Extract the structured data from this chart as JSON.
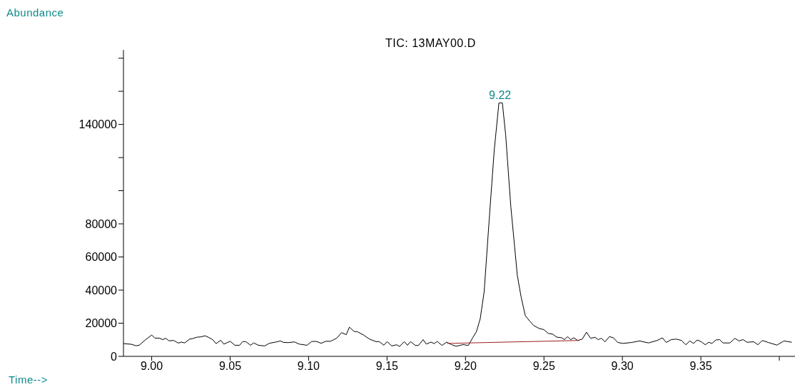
{
  "chart_data": {
    "type": "line",
    "title": "TIC: 13MAY00.D",
    "xlabel": "Time-->",
    "ylabel": "Abundance",
    "annotations": [
      {
        "text": "9.22",
        "x": 9.222,
        "y": 153000
      }
    ],
    "xlim": [
      8.982,
      9.41
    ],
    "xticks": [
      {
        "value": 9.0,
        "label": "9.00"
      },
      {
        "value": 9.05,
        "label": "9.05"
      },
      {
        "value": 9.1,
        "label": "9.10"
      },
      9.15,
      {
        "value": 9.2,
        "label": "9.20"
      },
      9.25,
      {
        "value": 9.3,
        "label": "9.30"
      },
      9.35,
      {
        "value": 9.4,
        "label": null
      }
    ],
    "ylim": [
      0,
      185000
    ],
    "yticks": [
      0,
      20000,
      40000,
      60000,
      80000,
      {
        "value": 100000,
        "label": null
      },
      {
        "value": 120000,
        "label": null
      },
      140000,
      {
        "value": 160000,
        "label": null
      },
      {
        "value": 180000,
        "label": null
      }
    ],
    "series": [
      {
        "color": "#000000",
        "x": [
          8.982,
          8.987,
          8.99,
          8.992,
          8.996,
          9.0,
          9.002,
          9.005,
          9.007,
          9.009,
          9.011,
          9.014,
          9.017,
          9.019,
          9.021,
          9.024,
          9.026,
          9.029,
          9.031,
          9.034,
          9.036,
          9.039,
          9.041,
          9.044,
          9.046,
          9.05,
          9.053,
          9.056,
          9.058,
          9.06,
          9.063,
          9.065,
          9.068,
          9.072,
          9.075,
          9.079,
          9.082,
          9.084,
          9.087,
          9.091,
          9.094,
          9.099,
          9.102,
          9.105,
          9.108,
          9.111,
          9.114,
          9.118,
          9.121,
          9.124,
          9.126,
          9.129,
          9.131,
          9.135,
          9.139,
          9.143,
          9.145,
          9.148,
          9.15,
          9.153,
          9.156,
          9.158,
          9.161,
          9.163,
          9.165,
          9.168,
          9.17,
          9.173,
          9.175,
          9.178,
          9.18,
          9.182,
          9.185,
          9.188,
          9.191,
          9.194,
          9.1985,
          9.2018,
          9.2045,
          9.207,
          9.2094,
          9.2119,
          9.2151,
          9.2183,
          9.2213,
          9.2235,
          9.2256,
          9.2289,
          9.233,
          9.2354,
          9.2381,
          9.241,
          9.2435,
          9.2468,
          9.25,
          9.2528,
          9.2554,
          9.2581,
          9.2614,
          9.263,
          9.2651,
          9.267,
          9.269,
          9.2716,
          9.2744,
          9.2771,
          9.2797,
          9.2825,
          9.2846,
          9.2865,
          9.289,
          9.2917,
          9.2943,
          9.297,
          9.3003,
          9.306,
          9.3109,
          9.3166,
          9.3222,
          9.3255,
          9.3279,
          9.3312,
          9.3344,
          9.3377,
          9.3404,
          9.343,
          9.3453,
          9.3477,
          9.3503,
          9.3528,
          9.355,
          9.3571,
          9.3596,
          9.362,
          9.3641,
          9.3685,
          9.3717,
          9.3742,
          9.3769,
          9.3795,
          9.3836,
          9.3864,
          9.3891,
          9.3929,
          9.3985,
          9.403,
          9.408
        ],
        "values": [
          7700,
          7300,
          6400,
          6700,
          10000,
          12900,
          11000,
          11000,
          10100,
          10900,
          9400,
          9600,
          8000,
          8600,
          8100,
          10300,
          10700,
          11600,
          11700,
          12400,
          11600,
          10000,
          7700,
          9700,
          7400,
          9100,
          6700,
          6700,
          8900,
          8900,
          6700,
          8100,
          6700,
          6300,
          7900,
          8600,
          9300,
          8400,
          8300,
          8700,
          7400,
          6700,
          9000,
          9000,
          7900,
          9100,
          9100,
          11000,
          14300,
          13100,
          17600,
          15000,
          14900,
          12900,
          10300,
          8900,
          8900,
          6700,
          8900,
          6300,
          7000,
          6000,
          8900,
          6700,
          8900,
          6600,
          6600,
          10100,
          7400,
          8600,
          7700,
          9000,
          6600,
          8600,
          7100,
          6100,
          7100,
          6600,
          11100,
          15000,
          22800,
          39100,
          82500,
          124300,
          153000,
          153000,
          133600,
          90200,
          49100,
          36000,
          24600,
          21200,
          18600,
          16900,
          16100,
          13800,
          13500,
          11600,
          11200,
          10100,
          11900,
          10100,
          11200,
          9600,
          10400,
          14600,
          10900,
          11500,
          10100,
          10900,
          8800,
          11900,
          11200,
          8400,
          7800,
          8400,
          9300,
          8100,
          9600,
          11200,
          8400,
          10100,
          10400,
          9600,
          7000,
          9300,
          7800,
          9900,
          8800,
          7000,
          8500,
          7800,
          9900,
          10100,
          8100,
          8100,
          10900,
          9300,
          10100,
          8500,
          8800,
          7000,
          9600,
          8400,
          6800,
          9300,
          8500
        ]
      },
      {
        "color": "#9b1c1c",
        "x": [
          9.1883,
          9.2727
        ],
        "values": [
          7800,
          9600
        ]
      }
    ]
  }
}
